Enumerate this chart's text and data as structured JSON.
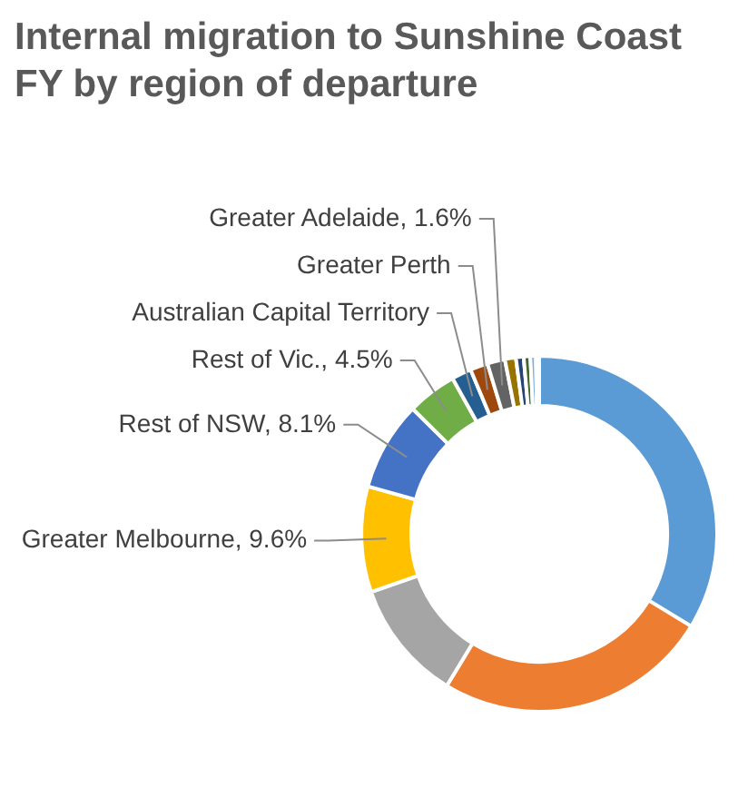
{
  "chart_data": {
    "type": "donut",
    "title": "Internal migration to Sunshine Coast FY by region of departure",
    "categories": [
      null,
      null,
      null,
      "Greater Melbourne",
      "Rest of NSW",
      "Rest of Vic.",
      "Australian Capital Territory",
      "Greater Perth",
      "Greater Adelaide",
      null,
      null,
      null,
      null,
      null
    ],
    "values": [
      33.7,
      25,
      11,
      9.6,
      8.1,
      4.5,
      1.8,
      1.6,
      1.6,
      1.0,
      0.7,
      0.6,
      0.5,
      0.3
    ],
    "value_labels": [
      null,
      null,
      null,
      "9.6%",
      "8.1%",
      "4.5%",
      null,
      null,
      "1.6%",
      null,
      null,
      null,
      null,
      null
    ],
    "colors": [
      "#5b9bd5",
      "#ed7d31",
      "#a5a5a5",
      "#ffc000",
      "#4472c4",
      "#70ad47",
      "#255e91",
      "#9e480e",
      "#636363",
      "#997300",
      "#264478",
      "#43682b",
      "#7cafdd",
      "#f1975a"
    ],
    "legend": false
  }
}
